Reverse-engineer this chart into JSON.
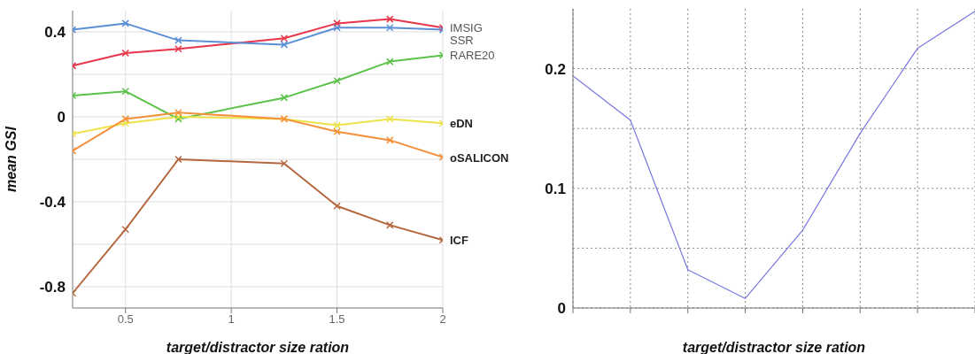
{
  "chart_data": [
    {
      "type": "line",
      "xlabel": "target/distractor size ration",
      "ylabel": "mean GSI",
      "x": [
        0.25,
        0.5,
        0.75,
        1.25,
        1.5,
        1.75,
        2
      ],
      "xlim": [
        0.25,
        2
      ],
      "xticks": [
        0.5,
        1,
        1.5,
        2
      ],
      "ylim": [
        -0.9,
        0.5
      ],
      "yticks": [
        {
          "value": -0.8,
          "label": "-0.8"
        },
        {
          "value": -0.6,
          "label": null
        },
        {
          "value": -0.4,
          "label": "-0.4"
        },
        {
          "value": -0.2,
          "label": null
        },
        {
          "value": 0,
          "label": "0"
        },
        {
          "value": 0.2,
          "label": null
        },
        {
          "value": 0.4,
          "label": "0.4"
        }
      ],
      "grid": true,
      "legend": false,
      "marker": "cross",
      "series": [
        {
          "name": "IMSIG",
          "color": "#e8354a",
          "values": [
            0.24,
            0.3,
            0.32,
            0.37,
            0.44,
            0.46,
            0.42
          ]
        },
        {
          "name": "SSR",
          "color": "#5b8fd6",
          "values": [
            0.41,
            0.44,
            0.36,
            0.34,
            0.42,
            0.42,
            0.41
          ]
        },
        {
          "name": "RARE20",
          "color": "#5cc24a",
          "values": [
            0.1,
            0.12,
            -0.01,
            0.09,
            0.17,
            0.26,
            0.29
          ]
        },
        {
          "name": "eDN",
          "color": "#eee24a",
          "values": [
            -0.08,
            -0.03,
            0,
            -0.01,
            -0.04,
            -0.01,
            -0.03
          ]
        },
        {
          "name": "oSALICON",
          "color": "#f5903a",
          "values": [
            -0.16,
            -0.01,
            0.02,
            -0.01,
            -0.07,
            -0.11,
            -0.19
          ]
        },
        {
          "name": "ICF",
          "color": "#b5683f",
          "values": [
            -0.83,
            -0.53,
            -0.2,
            -0.22,
            -0.42,
            -0.51,
            -0.58
          ]
        }
      ]
    },
    {
      "type": "line",
      "xlabel": "target/distractor size ration",
      "categories": [
        null,
        null,
        null,
        null,
        null,
        null,
        null,
        null
      ],
      "ylim": [
        0,
        0.25
      ],
      "yticks": [
        0,
        {
          "value": 0.05,
          "label": null
        },
        0.1,
        {
          "value": 0.15,
          "label": null
        },
        0.2
      ],
      "grid": true,
      "legend": false,
      "marker": "none",
      "series": [
        {
          "color": "#7777e0",
          "values": [
            0.194,
            0.157,
            0.032,
            0.008,
            0.065,
            0.146,
            0.217,
            0.248
          ]
        }
      ]
    }
  ]
}
